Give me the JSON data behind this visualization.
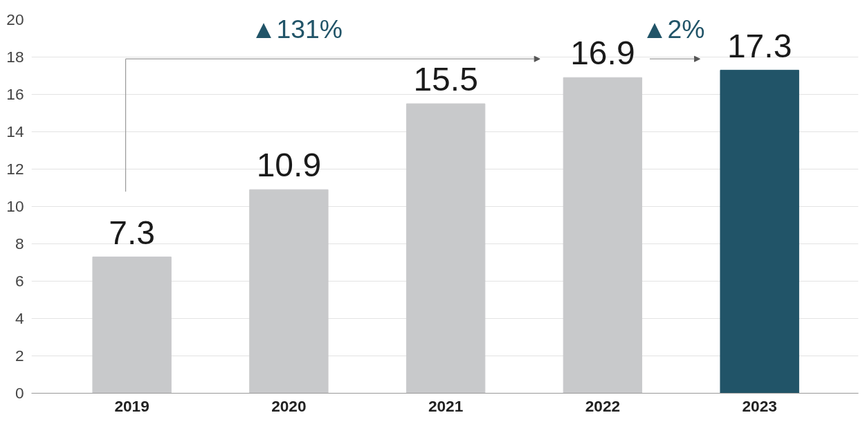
{
  "chart_data": {
    "type": "bar",
    "categories": [
      "2019",
      "2020",
      "2021",
      "2022",
      "2023"
    ],
    "values": [
      7.3,
      10.9,
      15.5,
      16.9,
      17.3
    ],
    "colors": [
      "#c8c9cb",
      "#c8c9cb",
      "#c8c9cb",
      "#c8c9cb",
      "#215468"
    ],
    "data_labels": true,
    "ylim": [
      0,
      20
    ],
    "yticks": [
      0,
      2,
      4,
      6,
      8,
      10,
      12,
      14,
      16,
      18,
      20
    ],
    "grid": "y",
    "annotations": [
      "▲131%",
      "▲2%"
    ]
  }
}
